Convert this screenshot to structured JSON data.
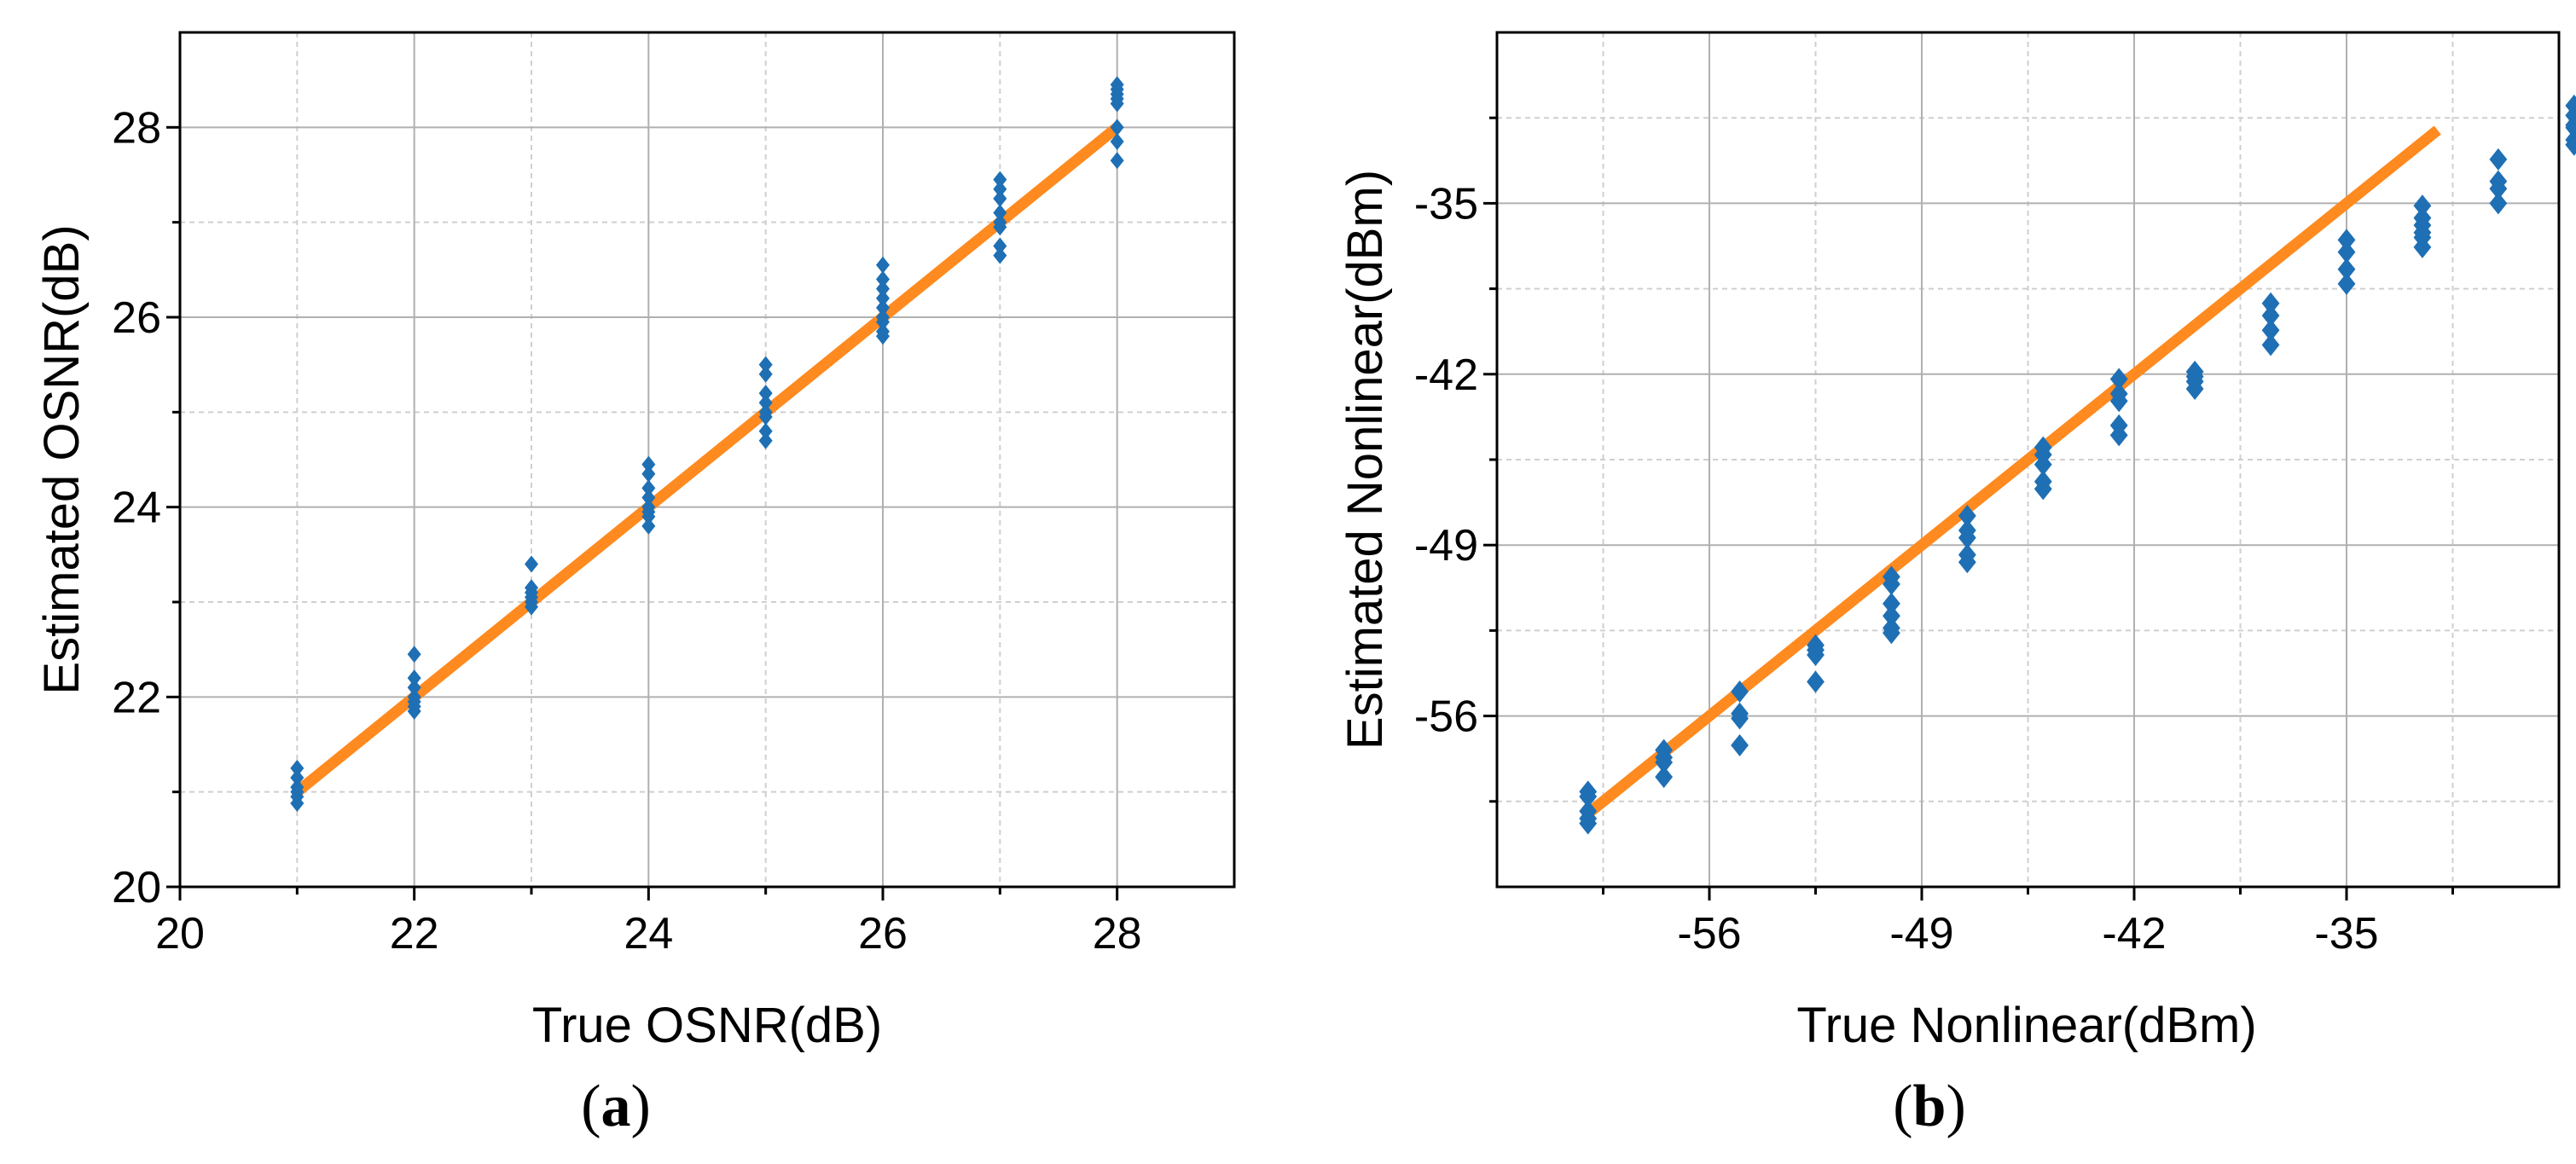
{
  "colors": {
    "points": "#1f6fb4",
    "fit_line": "#ff8a1f",
    "axes": "#000000",
    "grid": "#b0b0b0"
  },
  "panels": [
    {
      "label_open": "(",
      "label_letter": "a",
      "label_close": ")"
    },
    {
      "label_open": "(",
      "label_letter": "b",
      "label_close": ")"
    }
  ],
  "chart_data": [
    {
      "type": "scatter",
      "xlabel": "True OSNR(dB)",
      "ylabel": "Estimated OSNR(dB)",
      "xlim": [
        20,
        29
      ],
      "ylim": [
        20,
        29
      ],
      "xticks": [
        20,
        22,
        24,
        26,
        28
      ],
      "yticks": [
        20,
        22,
        24,
        26,
        28
      ],
      "grid": true,
      "marker": "diamond",
      "fit_line": {
        "x": [
          21,
          28
        ],
        "y": [
          21,
          28
        ]
      },
      "series": [
        {
          "points": [
            [
              21,
              21.25
            ],
            [
              21,
              21.15
            ],
            [
              21,
              21.05
            ],
            [
              21,
              21.0
            ],
            [
              21,
              20.95
            ],
            [
              21,
              20.88
            ],
            [
              22,
              22.45
            ],
            [
              22,
              22.2
            ],
            [
              22,
              22.1
            ],
            [
              22,
              22.0
            ],
            [
              22,
              21.95
            ],
            [
              22,
              21.9
            ],
            [
              22,
              21.85
            ],
            [
              23,
              23.4
            ],
            [
              23,
              23.15
            ],
            [
              23,
              23.1
            ],
            [
              23,
              23.05
            ],
            [
              23,
              23.0
            ],
            [
              23,
              22.95
            ],
            [
              24,
              24.45
            ],
            [
              24,
              24.35
            ],
            [
              24,
              24.2
            ],
            [
              24,
              24.1
            ],
            [
              24,
              24.0
            ],
            [
              24,
              23.95
            ],
            [
              24,
              23.9
            ],
            [
              24,
              23.8
            ],
            [
              25,
              25.5
            ],
            [
              25,
              25.4
            ],
            [
              25,
              25.2
            ],
            [
              25,
              25.1
            ],
            [
              25,
              25.0
            ],
            [
              25,
              24.95
            ],
            [
              25,
              24.8
            ],
            [
              25,
              24.7
            ],
            [
              26,
              26.55
            ],
            [
              26,
              26.4
            ],
            [
              26,
              26.3
            ],
            [
              26,
              26.2
            ],
            [
              26,
              26.1
            ],
            [
              26,
              26.0
            ],
            [
              26,
              25.95
            ],
            [
              26,
              25.85
            ],
            [
              26,
              25.8
            ],
            [
              27,
              27.45
            ],
            [
              27,
              27.35
            ],
            [
              27,
              27.25
            ],
            [
              27,
              27.1
            ],
            [
              27,
              27.0
            ],
            [
              27,
              26.95
            ],
            [
              27,
              26.75
            ],
            [
              27,
              26.65
            ],
            [
              28,
              28.45
            ],
            [
              28,
              28.4
            ],
            [
              28,
              28.35
            ],
            [
              28,
              28.3
            ],
            [
              28,
              28.25
            ],
            [
              28,
              28.0
            ],
            [
              28,
              27.85
            ],
            [
              28,
              27.65
            ]
          ]
        }
      ]
    },
    {
      "type": "scatter",
      "xlabel": "True Nonlinear(dBm)",
      "ylabel": "Estimated Nonlinear(dBm)",
      "xlim": [
        -63,
        -28
      ],
      "ylim": [
        -63,
        -28
      ],
      "xticks": [
        -56,
        -49,
        -42,
        -35
      ],
      "yticks": [
        -56,
        -49,
        -42,
        -35
      ],
      "grid": true,
      "marker": "diamond",
      "fit_line": {
        "x": [
          -60,
          -32
        ],
        "y": [
          -60,
          -32
        ]
      },
      "series": [
        {
          "points": [
            [
              -60,
              -59.1
            ],
            [
              -60,
              -59.3
            ],
            [
              -60,
              -59.9
            ],
            [
              -60,
              -60.2
            ],
            [
              -60,
              -60.4
            ],
            [
              -57.5,
              -57.4
            ],
            [
              -57.5,
              -57.7
            ],
            [
              -57.5,
              -57.9
            ],
            [
              -57.5,
              -58.5
            ],
            [
              -55,
              -55.9
            ],
            [
              -55,
              -56.1
            ],
            [
              -55,
              -55.0
            ],
            [
              -55,
              -57.2
            ],
            [
              -52.5,
              -53.1
            ],
            [
              -52.5,
              -53.3
            ],
            [
              -52.5,
              -53.5
            ],
            [
              -52.5,
              -54.6
            ],
            [
              -50,
              -50.3
            ],
            [
              -50,
              -50.6
            ],
            [
              -50,
              -52.4
            ],
            [
              -50,
              -52.6
            ],
            [
              -50,
              -51.4
            ],
            [
              -50,
              -51.9
            ],
            [
              -47.5,
              -47.8
            ],
            [
              -47.5,
              -48.4
            ],
            [
              -47.5,
              -48.7
            ],
            [
              -47.5,
              -49.4
            ],
            [
              -47.5,
              -49.7
            ],
            [
              -45,
              -45.0
            ],
            [
              -45,
              -45.3
            ],
            [
              -45,
              -46.4
            ],
            [
              -45,
              -46.7
            ],
            [
              -45,
              -45.7
            ],
            [
              -42.5,
              -42.2
            ],
            [
              -42.5,
              -42.8
            ],
            [
              -42.5,
              -43.1
            ],
            [
              -42.5,
              -44.1
            ],
            [
              -42.5,
              -44.5
            ],
            [
              -40,
              -41.9
            ],
            [
              -40,
              -42.1
            ],
            [
              -40,
              -42.3
            ],
            [
              -40,
              -42.6
            ],
            [
              -37.5,
              -39.1
            ],
            [
              -37.5,
              -39.6
            ],
            [
              -37.5,
              -40.2
            ],
            [
              -37.5,
              -40.8
            ],
            [
              -35,
              -36.5
            ],
            [
              -35,
              -37.7
            ],
            [
              -35,
              -38.3
            ],
            [
              -35,
              -37.0
            ],
            [
              -32.5,
              -35.1
            ],
            [
              -32.5,
              -35.6
            ],
            [
              -32.5,
              -35.9
            ],
            [
              -32.5,
              -36.4
            ],
            [
              -32.5,
              -36.8
            ],
            [
              -32.5,
              -36.2
            ],
            [
              -30,
              -33.2
            ],
            [
              -30,
              -34.1
            ],
            [
              -30,
              -34.4
            ],
            [
              -30,
              -35.0
            ],
            [
              -27.5,
              -31.0
            ],
            [
              -27.5,
              -31.4
            ],
            [
              -27.5,
              -31.8
            ],
            [
              -27.5,
              -32.4
            ],
            [
              -27.5,
              -32.6
            ],
            [
              -27.5,
              -31.9
            ]
          ]
        }
      ]
    }
  ]
}
